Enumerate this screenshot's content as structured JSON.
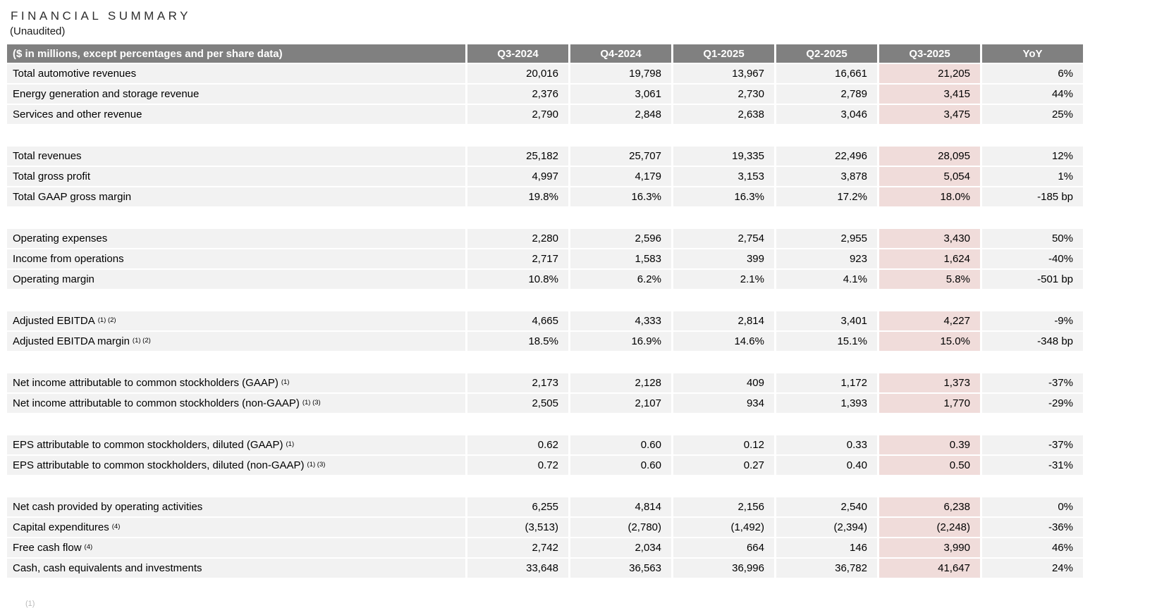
{
  "page": {
    "title": "FINANCIAL SUMMARY",
    "subtitle": "(Unaudited)",
    "footnote_marker": "(1)"
  },
  "table": {
    "unit_label": "($ in millions, except percentages and per share data)",
    "columns": [
      "Q3-2024",
      "Q4-2024",
      "Q1-2025",
      "Q2-2025",
      "Q3-2025",
      "YoY"
    ],
    "highlight_column": "Q3-2025",
    "highlight_index": 4,
    "colors": {
      "header_bg": "#808080",
      "header_text": "#ffffff",
      "row_bg": "#f2f2f2",
      "highlight_bg": "#f0dcda",
      "text": "#000000"
    },
    "groups": [
      {
        "rows": [
          {
            "label": "Total automotive revenues",
            "sup": "",
            "values": [
              "20,016",
              "19,798",
              "13,967",
              "16,661",
              "21,205",
              "6%"
            ]
          },
          {
            "label": "Energy generation and storage revenue",
            "sup": "",
            "values": [
              "2,376",
              "3,061",
              "2,730",
              "2,789",
              "3,415",
              "44%"
            ]
          },
          {
            "label": "Services and other revenue",
            "sup": "",
            "values": [
              "2,790",
              "2,848",
              "2,638",
              "3,046",
              "3,475",
              "25%"
            ]
          }
        ]
      },
      {
        "rows": [
          {
            "label": "Total revenues",
            "sup": "",
            "values": [
              "25,182",
              "25,707",
              "19,335",
              "22,496",
              "28,095",
              "12%"
            ]
          },
          {
            "label": "Total gross profit",
            "sup": "",
            "values": [
              "4,997",
              "4,179",
              "3,153",
              "3,878",
              "5,054",
              "1%"
            ]
          },
          {
            "label": "Total GAAP gross margin",
            "sup": "",
            "values": [
              "19.8%",
              "16.3%",
              "16.3%",
              "17.2%",
              "18.0%",
              "-185 bp"
            ]
          }
        ]
      },
      {
        "rows": [
          {
            "label": "Operating expenses",
            "sup": "",
            "values": [
              "2,280",
              "2,596",
              "2,754",
              "2,955",
              "3,430",
              "50%"
            ]
          },
          {
            "label": "Income from operations",
            "sup": "",
            "values": [
              "2,717",
              "1,583",
              "399",
              "923",
              "1,624",
              "-40%"
            ]
          },
          {
            "label": "Operating margin",
            "sup": "",
            "values": [
              "10.8%",
              "6.2%",
              "2.1%",
              "4.1%",
              "5.8%",
              "-501 bp"
            ]
          }
        ]
      },
      {
        "rows": [
          {
            "label": "Adjusted EBITDA",
            "sup": "(1) (2)",
            "values": [
              "4,665",
              "4,333",
              "2,814",
              "3,401",
              "4,227",
              "-9%"
            ]
          },
          {
            "label": "Adjusted EBITDA margin",
            "sup": "(1) (2)",
            "values": [
              "18.5%",
              "16.9%",
              "14.6%",
              "15.1%",
              "15.0%",
              "-348 bp"
            ]
          }
        ]
      },
      {
        "rows": [
          {
            "label": "Net income attributable to common stockholders (GAAP)",
            "sup": "(1)",
            "values": [
              "2,173",
              "2,128",
              "409",
              "1,172",
              "1,373",
              "-37%"
            ]
          },
          {
            "label": "Net income attributable to common stockholders (non-GAAP)",
            "sup": "(1) (3)",
            "values": [
              "2,505",
              "2,107",
              "934",
              "1,393",
              "1,770",
              "-29%"
            ]
          }
        ]
      },
      {
        "rows": [
          {
            "label": "EPS attributable to common stockholders, diluted (GAAP)",
            "sup": "(1)",
            "values": [
              "0.62",
              "0.60",
              "0.12",
              "0.33",
              "0.39",
              "-37%"
            ]
          },
          {
            "label": "EPS attributable to common stockholders, diluted (non-GAAP)",
            "sup": "(1) (3)",
            "values": [
              "0.72",
              "0.60",
              "0.27",
              "0.40",
              "0.50",
              "-31%"
            ]
          }
        ]
      },
      {
        "rows": [
          {
            "label": "Net cash provided by operating activities",
            "sup": "",
            "values": [
              "6,255",
              "4,814",
              "2,156",
              "2,540",
              "6,238",
              "0%"
            ]
          },
          {
            "label": "Capital expenditures",
            "sup": "(4)",
            "values": [
              "(3,513)",
              "(2,780)",
              "(1,492)",
              "(2,394)",
              "(2,248)",
              "-36%"
            ]
          },
          {
            "label": "Free cash flow",
            "sup": "(4)",
            "values": [
              "2,742",
              "2,034",
              "664",
              "146",
              "3,990",
              "46%"
            ]
          },
          {
            "label": "Cash, cash equivalents and investments",
            "sup": "",
            "values": [
              "33,648",
              "36,563",
              "36,996",
              "36,782",
              "41,647",
              "24%"
            ]
          }
        ]
      }
    ]
  }
}
